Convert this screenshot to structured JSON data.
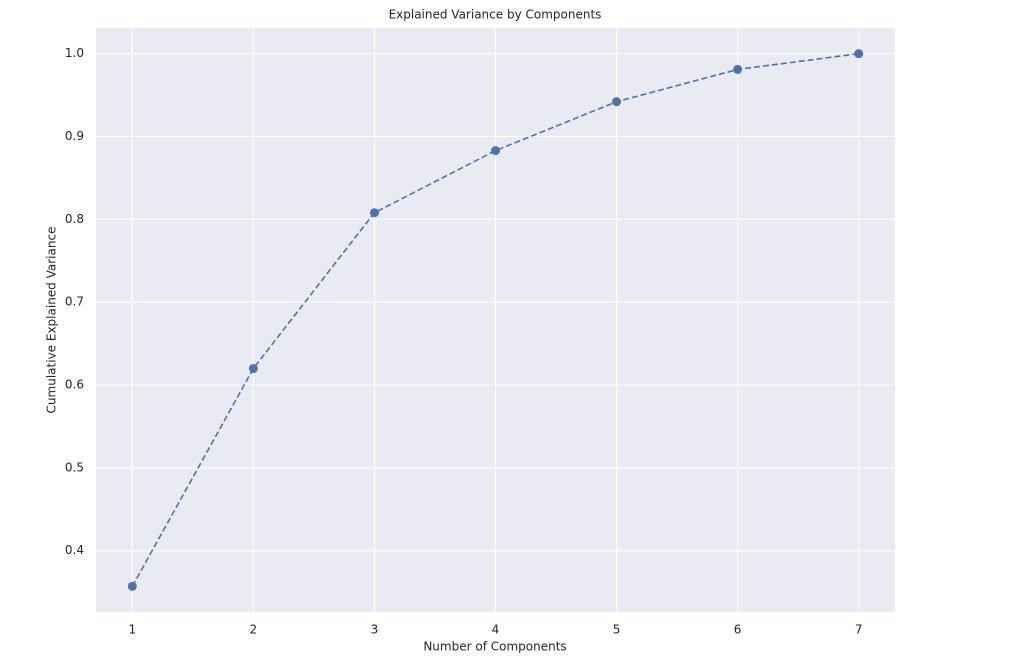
{
  "chart_data": {
    "type": "line",
    "title": "Explained Variance by Components",
    "xlabel": "Number of Components",
    "ylabel": "Cumulative Explained Variance",
    "x": [
      1,
      2,
      3,
      4,
      5,
      6,
      7
    ],
    "values": [
      0.357,
      0.62,
      0.808,
      0.883,
      0.942,
      0.981,
      1.0
    ],
    "color": "#4c72b0",
    "linestyle": "dashed",
    "marker": "circle",
    "xlim": [
      0.7,
      7.3
    ],
    "xticks": [
      1,
      2,
      3,
      4,
      5,
      6,
      7
    ],
    "ylim": [
      0.326,
      1.031
    ],
    "yticks": [
      0.4,
      0.5,
      0.6,
      0.7,
      0.8,
      0.9,
      {
        "value": 1,
        "label": "1.0"
      }
    ],
    "grid": true
  }
}
